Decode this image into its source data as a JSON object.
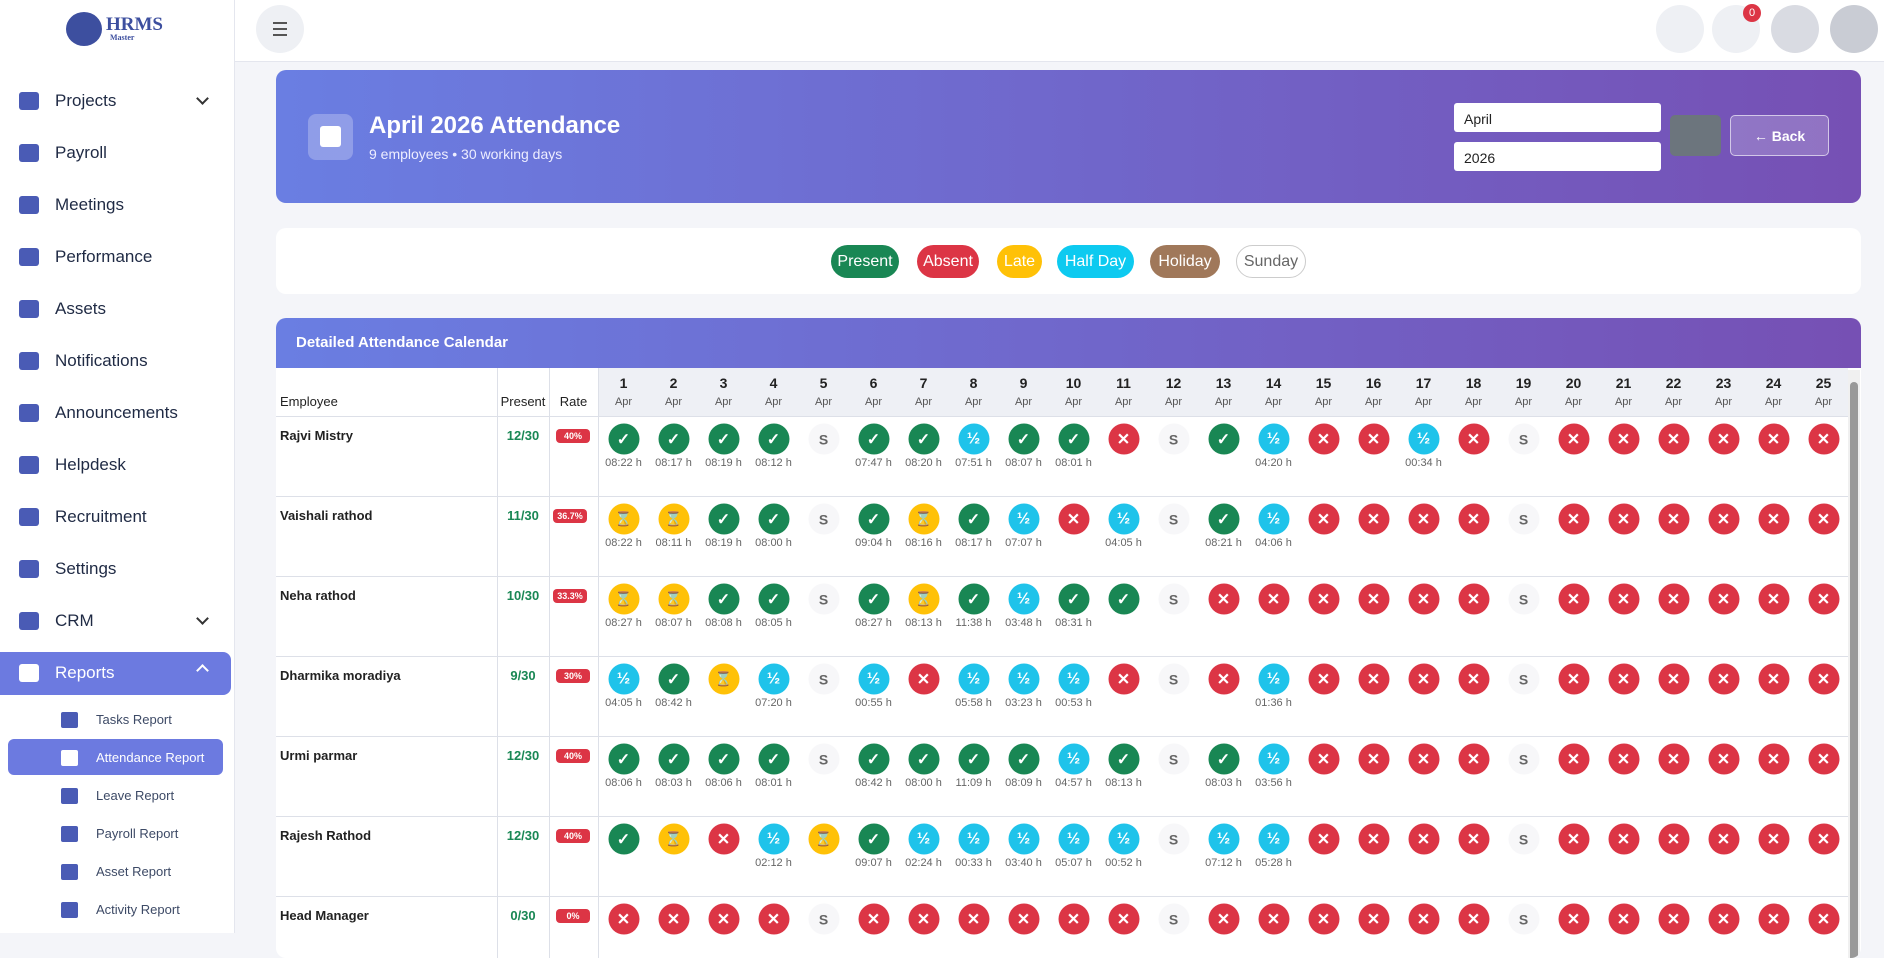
{
  "logo": {
    "title": "HRMS",
    "subtitle": "Master"
  },
  "sidebar": {
    "items": [
      "Projects",
      "Payroll",
      "Meetings",
      "Performance",
      "Assets",
      "Notifications",
      "Announcements",
      "Helpdesk",
      "Recruitment",
      "Settings",
      "CRM",
      "Reports"
    ],
    "subitems": [
      "Tasks Report",
      "Attendance Report",
      "Leave Report",
      "Payroll Report",
      "Asset Report",
      "Activity Report"
    ]
  },
  "topbar": {
    "badge": "0"
  },
  "header": {
    "title": "April 2026 Attendance",
    "subtitle": "9 employees • 30 working days",
    "month": "April",
    "year": "2026",
    "back": "Back"
  },
  "legend": [
    "Present",
    "Absent",
    "Late",
    "Half Day",
    "Holiday",
    "Sunday"
  ],
  "calendar": {
    "title": "Detailed Attendance Calendar",
    "columns": {
      "employee": "Employee",
      "present": "Present",
      "rate": "Rate"
    },
    "days": [
      [
        "1",
        "Apr"
      ],
      [
        "2",
        "Apr"
      ],
      [
        "3",
        "Apr"
      ],
      [
        "4",
        "Apr"
      ],
      [
        "5",
        "Apr"
      ],
      [
        "6",
        "Apr"
      ],
      [
        "7",
        "Apr"
      ],
      [
        "8",
        "Apr"
      ],
      [
        "9",
        "Apr"
      ],
      [
        "10",
        "Apr"
      ],
      [
        "11",
        "Apr"
      ],
      [
        "12",
        "Apr"
      ],
      [
        "13",
        "Apr"
      ],
      [
        "14",
        "Apr"
      ],
      [
        "15",
        "Apr"
      ],
      [
        "16",
        "Apr"
      ],
      [
        "17",
        "Apr"
      ],
      [
        "18",
        "Apr"
      ],
      [
        "19",
        "Apr"
      ],
      [
        "20",
        "Apr"
      ],
      [
        "21",
        "Apr"
      ],
      [
        "22",
        "Apr"
      ],
      [
        "23",
        "Apr"
      ],
      [
        "24",
        "Apr"
      ],
      [
        "25",
        "Apr"
      ]
    ],
    "rows": [
      {
        "name": "Rajvi Mistry",
        "present": "12/30",
        "rate": "40%",
        "cells": [
          [
            "✓",
            "08:22 h"
          ],
          [
            "✓",
            "08:17 h"
          ],
          [
            "✓",
            "08:19 h"
          ],
          [
            "✓",
            "08:12 h"
          ],
          [
            "S"
          ],
          [
            "✓",
            "07:47 h"
          ],
          [
            "✓",
            "08:20 h"
          ],
          [
            "½",
            "07:51 h"
          ],
          [
            "✓",
            "08:07 h"
          ],
          [
            "✓",
            "08:01 h"
          ],
          [
            "✕"
          ],
          [
            "S"
          ],
          [
            "✓"
          ],
          [
            "½",
            "04:20 h"
          ],
          [
            "✕"
          ],
          [
            "✕"
          ],
          [
            "½",
            "00:34 h"
          ],
          [
            "✕"
          ],
          [
            "S"
          ],
          [
            "✕"
          ],
          [
            "✕"
          ],
          [
            "✕"
          ],
          [
            "✕"
          ],
          [
            "✕"
          ],
          [
            "✕"
          ]
        ]
      },
      {
        "name": "Vaishali rathod",
        "present": "11/30",
        "rate": "36.7%",
        "cells": [
          [
            "⌛",
            "08:22 h"
          ],
          [
            "⌛",
            "08:11 h"
          ],
          [
            "✓",
            "08:19 h"
          ],
          [
            "✓",
            "08:00 h"
          ],
          [
            "S"
          ],
          [
            "✓",
            "09:04 h"
          ],
          [
            "⌛",
            "08:16 h"
          ],
          [
            "✓",
            "08:17 h"
          ],
          [
            "½",
            "07:07 h"
          ],
          [
            "✕"
          ],
          [
            "½",
            "04:05 h"
          ],
          [
            "S"
          ],
          [
            "✓",
            "08:21 h"
          ],
          [
            "½",
            "04:06 h"
          ],
          [
            "✕"
          ],
          [
            "✕"
          ],
          [
            "✕"
          ],
          [
            "✕"
          ],
          [
            "S"
          ],
          [
            "✕"
          ],
          [
            "✕"
          ],
          [
            "✕"
          ],
          [
            "✕"
          ],
          [
            "✕"
          ],
          [
            "✕"
          ]
        ]
      },
      {
        "name": "Neha rathod",
        "present": "10/30",
        "rate": "33.3%",
        "cells": [
          [
            "⌛",
            "08:27 h"
          ],
          [
            "⌛",
            "08:07 h"
          ],
          [
            "✓",
            "08:08 h"
          ],
          [
            "✓",
            "08:05 h"
          ],
          [
            "S"
          ],
          [
            "✓",
            "08:27 h"
          ],
          [
            "⌛",
            "08:13 h"
          ],
          [
            "✓",
            "11:38 h"
          ],
          [
            "½",
            "03:48 h"
          ],
          [
            "✓",
            "08:31 h"
          ],
          [
            "✓"
          ],
          [
            "S"
          ],
          [
            "✕"
          ],
          [
            "✕"
          ],
          [
            "✕"
          ],
          [
            "✕"
          ],
          [
            "✕"
          ],
          [
            "✕"
          ],
          [
            "S"
          ],
          [
            "✕"
          ],
          [
            "✕"
          ],
          [
            "✕"
          ],
          [
            "✕"
          ],
          [
            "✕"
          ],
          [
            "✕"
          ]
        ]
      },
      {
        "name": "Dharmika moradiya",
        "present": "9/30",
        "rate": "30%",
        "cells": [
          [
            "½",
            "04:05 h"
          ],
          [
            "✓",
            "08:42 h"
          ],
          [
            "⌛"
          ],
          [
            "½",
            "07:20 h"
          ],
          [
            "S"
          ],
          [
            "½",
            "00:55 h"
          ],
          [
            "✕"
          ],
          [
            "½",
            "05:58 h"
          ],
          [
            "½",
            "03:23 h"
          ],
          [
            "½",
            "00:53 h"
          ],
          [
            "✕"
          ],
          [
            "S"
          ],
          [
            "✕"
          ],
          [
            "½",
            "01:36 h"
          ],
          [
            "✕"
          ],
          [
            "✕"
          ],
          [
            "✕"
          ],
          [
            "✕"
          ],
          [
            "S"
          ],
          [
            "✕"
          ],
          [
            "✕"
          ],
          [
            "✕"
          ],
          [
            "✕"
          ],
          [
            "✕"
          ],
          [
            "✕"
          ]
        ]
      },
      {
        "name": "Urmi parmar",
        "present": "12/30",
        "rate": "40%",
        "cells": [
          [
            "✓",
            "08:06 h"
          ],
          [
            "✓",
            "08:03 h"
          ],
          [
            "✓",
            "08:06 h"
          ],
          [
            "✓",
            "08:01 h"
          ],
          [
            "S"
          ],
          [
            "✓",
            "08:42 h"
          ],
          [
            "✓",
            "08:00 h"
          ],
          [
            "✓",
            "11:09 h"
          ],
          [
            "✓",
            "08:09 h"
          ],
          [
            "½",
            "04:57 h"
          ],
          [
            "✓",
            "08:13 h"
          ],
          [
            "S"
          ],
          [
            "✓",
            "08:03 h"
          ],
          [
            "½",
            "03:56 h"
          ],
          [
            "✕"
          ],
          [
            "✕"
          ],
          [
            "✕"
          ],
          [
            "✕"
          ],
          [
            "S"
          ],
          [
            "✕"
          ],
          [
            "✕"
          ],
          [
            "✕"
          ],
          [
            "✕"
          ],
          [
            "✕"
          ],
          [
            "✕"
          ]
        ]
      },
      {
        "name": "Rajesh Rathod",
        "present": "12/30",
        "rate": "40%",
        "cells": [
          [
            "✓"
          ],
          [
            "⌛"
          ],
          [
            "✕"
          ],
          [
            "½",
            "02:12 h"
          ],
          [
            "⌛"
          ],
          [
            "✓",
            "09:07 h"
          ],
          [
            "½",
            "02:24 h"
          ],
          [
            "½",
            "00:33 h"
          ],
          [
            "½",
            "03:40 h"
          ],
          [
            "½",
            "05:07 h"
          ],
          [
            "½",
            "00:52 h"
          ],
          [
            "S"
          ],
          [
            "½",
            "07:12 h"
          ],
          [
            "½",
            "05:28 h"
          ],
          [
            "✕"
          ],
          [
            "✕"
          ],
          [
            "✕"
          ],
          [
            "✕"
          ],
          [
            "S"
          ],
          [
            "✕"
          ],
          [
            "✕"
          ],
          [
            "✕"
          ],
          [
            "✕"
          ],
          [
            "✕"
          ],
          [
            "✕"
          ]
        ]
      },
      {
        "name": "Head Manager",
        "present": "0/30",
        "rate": "0%",
        "cells": [
          [
            "✕"
          ],
          [
            "✕"
          ],
          [
            "✕"
          ],
          [
            "✕"
          ],
          [
            "S"
          ],
          [
            "✕"
          ],
          [
            "✕"
          ],
          [
            "✕"
          ],
          [
            "✕"
          ],
          [
            "✕"
          ],
          [
            "✕"
          ],
          [
            "S"
          ],
          [
            "✕"
          ],
          [
            "✕"
          ],
          [
            "✕"
          ],
          [
            "✕"
          ],
          [
            "✕"
          ],
          [
            "✕"
          ],
          [
            "S"
          ],
          [
            "✕"
          ],
          [
            "✕"
          ],
          [
            "✕"
          ],
          [
            "✕"
          ],
          [
            "✕"
          ],
          [
            "✕"
          ]
        ]
      }
    ]
  }
}
